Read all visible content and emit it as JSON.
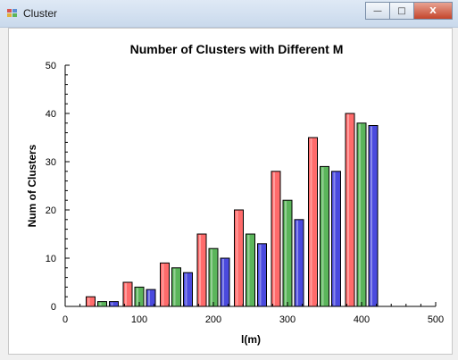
{
  "window": {
    "title": "Cluster",
    "buttons": {
      "minimize": "—",
      "maximize": "□",
      "close": "X"
    }
  },
  "chart_data": {
    "type": "bar",
    "title": "Number of Clusters with Different M",
    "xlabel": "l(m)",
    "ylabel": "Num of Clusters",
    "xlim": [
      0,
      500
    ],
    "ylim": [
      0,
      50
    ],
    "x_ticks": [
      0,
      100,
      200,
      300,
      400,
      500
    ],
    "y_ticks": [
      0,
      10,
      20,
      30,
      40,
      50
    ],
    "grid": false,
    "x": [
      50,
      100,
      150,
      200,
      250,
      300,
      350,
      400
    ],
    "series": [
      {
        "color": "#ff6b6b",
        "values": [
          2,
          5,
          9,
          15,
          20,
          28,
          35,
          40
        ]
      },
      {
        "color": "#5bb55b",
        "values": [
          1,
          4,
          8,
          12,
          15,
          22,
          29,
          38
        ]
      },
      {
        "color": "#4a4ade",
        "values": [
          1,
          3.5,
          7,
          10,
          13,
          18,
          28,
          37.5
        ]
      }
    ]
  }
}
